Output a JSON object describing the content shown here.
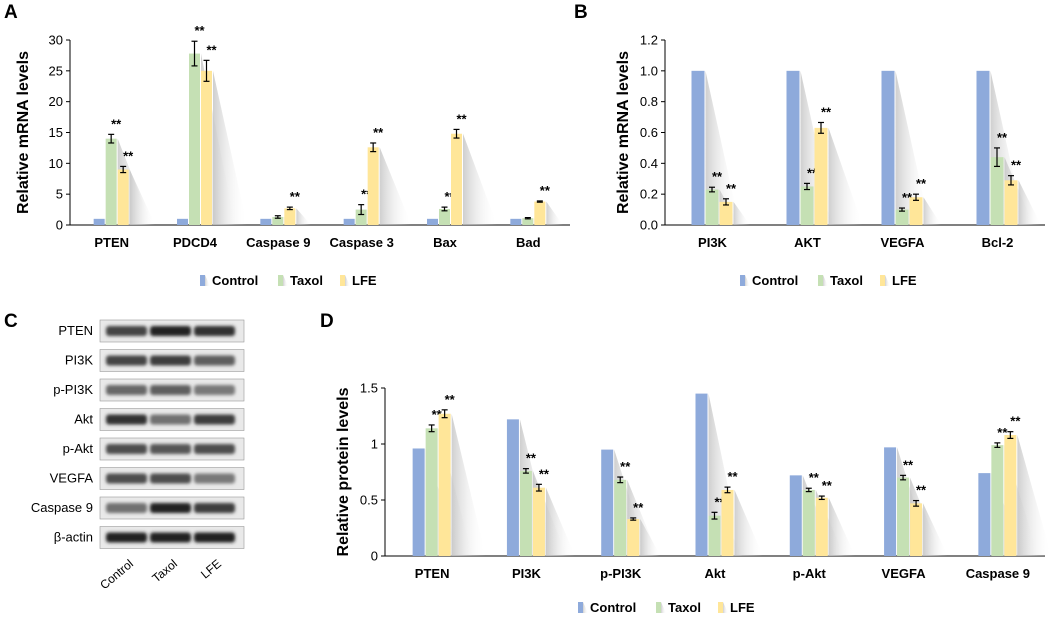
{
  "panels": {
    "A": "A",
    "B": "B",
    "C": "C",
    "D": "D"
  },
  "colors": {
    "Control": "#8EAADB",
    "Taxol": "#C5E0B4",
    "LFE": "#FFE699"
  },
  "chart_data": [
    {
      "id": "A",
      "type": "bar",
      "ylabel": "Relative mRNA levels",
      "ylim": [
        0,
        30
      ],
      "yticks": [
        "0",
        "5",
        "10",
        "15",
        "20",
        "25",
        "30"
      ],
      "categories": [
        "PTEN",
        "PDCD4",
        "Caspase 9",
        "Caspase 3",
        "Bax",
        "Bad"
      ],
      "series": [
        {
          "name": "Control",
          "values": [
            1,
            1,
            1,
            1,
            1,
            1
          ],
          "errors": [
            0,
            0,
            0,
            0,
            0,
            0
          ],
          "sig": [
            "",
            "",
            "",
            "",
            "",
            ""
          ]
        },
        {
          "name": "Taxol",
          "values": [
            14,
            27.8,
            1.3,
            2.5,
            2.6,
            1.1
          ],
          "errors": [
            0.7,
            2.0,
            0.2,
            0.8,
            0.3,
            0.1
          ],
          "sig": [
            "**",
            "**",
            "",
            "**",
            "**",
            ""
          ]
        },
        {
          "name": "LFE",
          "values": [
            9,
            25,
            2.7,
            12.6,
            14.8,
            3.8
          ],
          "errors": [
            0.5,
            1.7,
            0.2,
            0.7,
            0.7,
            0.1
          ],
          "sig": [
            "**",
            "**",
            "**",
            "**",
            "**",
            "**"
          ]
        }
      ],
      "legend": [
        "Control",
        "Taxol",
        "LFE"
      ]
    },
    {
      "id": "B",
      "type": "bar",
      "ylabel": "Relative mRNA levels",
      "ylim": [
        0,
        1.2
      ],
      "yticks": [
        "0.0",
        "0.2",
        "0.4",
        "0.6",
        "0.8",
        "1.0",
        "1.2"
      ],
      "categories": [
        "PI3K",
        "AKT",
        "VEGFA",
        "Bcl-2"
      ],
      "series": [
        {
          "name": "Control",
          "values": [
            1,
            1,
            1,
            1
          ],
          "errors": [
            0,
            0,
            0,
            0
          ],
          "sig": [
            "",
            "",
            "",
            ""
          ]
        },
        {
          "name": "Taxol",
          "values": [
            0.23,
            0.25,
            0.1,
            0.44
          ],
          "errors": [
            0.015,
            0.02,
            0.01,
            0.06
          ],
          "sig": [
            "**",
            "**",
            "**",
            "**"
          ]
        },
        {
          "name": "LFE",
          "values": [
            0.15,
            0.63,
            0.18,
            0.29
          ],
          "errors": [
            0.02,
            0.035,
            0.02,
            0.03
          ],
          "sig": [
            "**",
            "**",
            "**",
            "**"
          ]
        }
      ],
      "legend": [
        "Control",
        "Taxol",
        "LFE"
      ]
    },
    {
      "id": "D",
      "type": "bar",
      "ylabel": "Relative protein levels",
      "ylim": [
        0,
        1.5
      ],
      "yticks": [
        "0",
        "0.5",
        "1",
        "1.5"
      ],
      "categories": [
        "PTEN",
        "PI3K",
        "p-PI3K",
        "Akt",
        "p-Akt",
        "VEGFA",
        "Caspase 9"
      ],
      "series": [
        {
          "name": "Control",
          "values": [
            0.96,
            1.22,
            0.95,
            1.45,
            0.72,
            0.97,
            0.74
          ],
          "errors": [
            0,
            0,
            0,
            0,
            0,
            0,
            0
          ],
          "sig": [
            "",
            "",
            "",
            "",
            "",
            "",
            ""
          ]
        },
        {
          "name": "Taxol",
          "values": [
            1.14,
            0.76,
            0.68,
            0.36,
            0.59,
            0.7,
            0.99
          ],
          "errors": [
            0.03,
            0.02,
            0.025,
            0.03,
            0.015,
            0.02,
            0.02
          ],
          "sig": [
            "**",
            "**",
            "**",
            "**",
            "**",
            "**",
            "**"
          ]
        },
        {
          "name": "LFE",
          "values": [
            1.27,
            0.61,
            0.33,
            0.59,
            0.52,
            0.47,
            1.08
          ],
          "errors": [
            0.035,
            0.03,
            0.01,
            0.025,
            0.015,
            0.025,
            0.03
          ],
          "sig": [
            "**",
            "**",
            "**",
            "**",
            "**",
            "**",
            "**"
          ]
        }
      ],
      "legend": [
        "Control",
        "Taxol",
        "LFE"
      ]
    }
  ],
  "blot": {
    "proteins": [
      "PTEN",
      "PI3K",
      "p-PI3K",
      "Akt",
      "p-Akt",
      "VEGFA",
      "Caspase 9",
      "β-actin"
    ],
    "lanes": [
      "Control",
      "Taxol",
      "LFE"
    ],
    "intensity": [
      [
        0.75,
        0.95,
        0.85
      ],
      [
        0.75,
        0.8,
        0.6
      ],
      [
        0.55,
        0.6,
        0.45
      ],
      [
        0.85,
        0.5,
        0.8
      ],
      [
        0.7,
        0.65,
        0.7
      ],
      [
        0.7,
        0.7,
        0.45
      ],
      [
        0.5,
        0.95,
        0.8
      ],
      [
        0.95,
        0.95,
        0.95
      ]
    ]
  }
}
